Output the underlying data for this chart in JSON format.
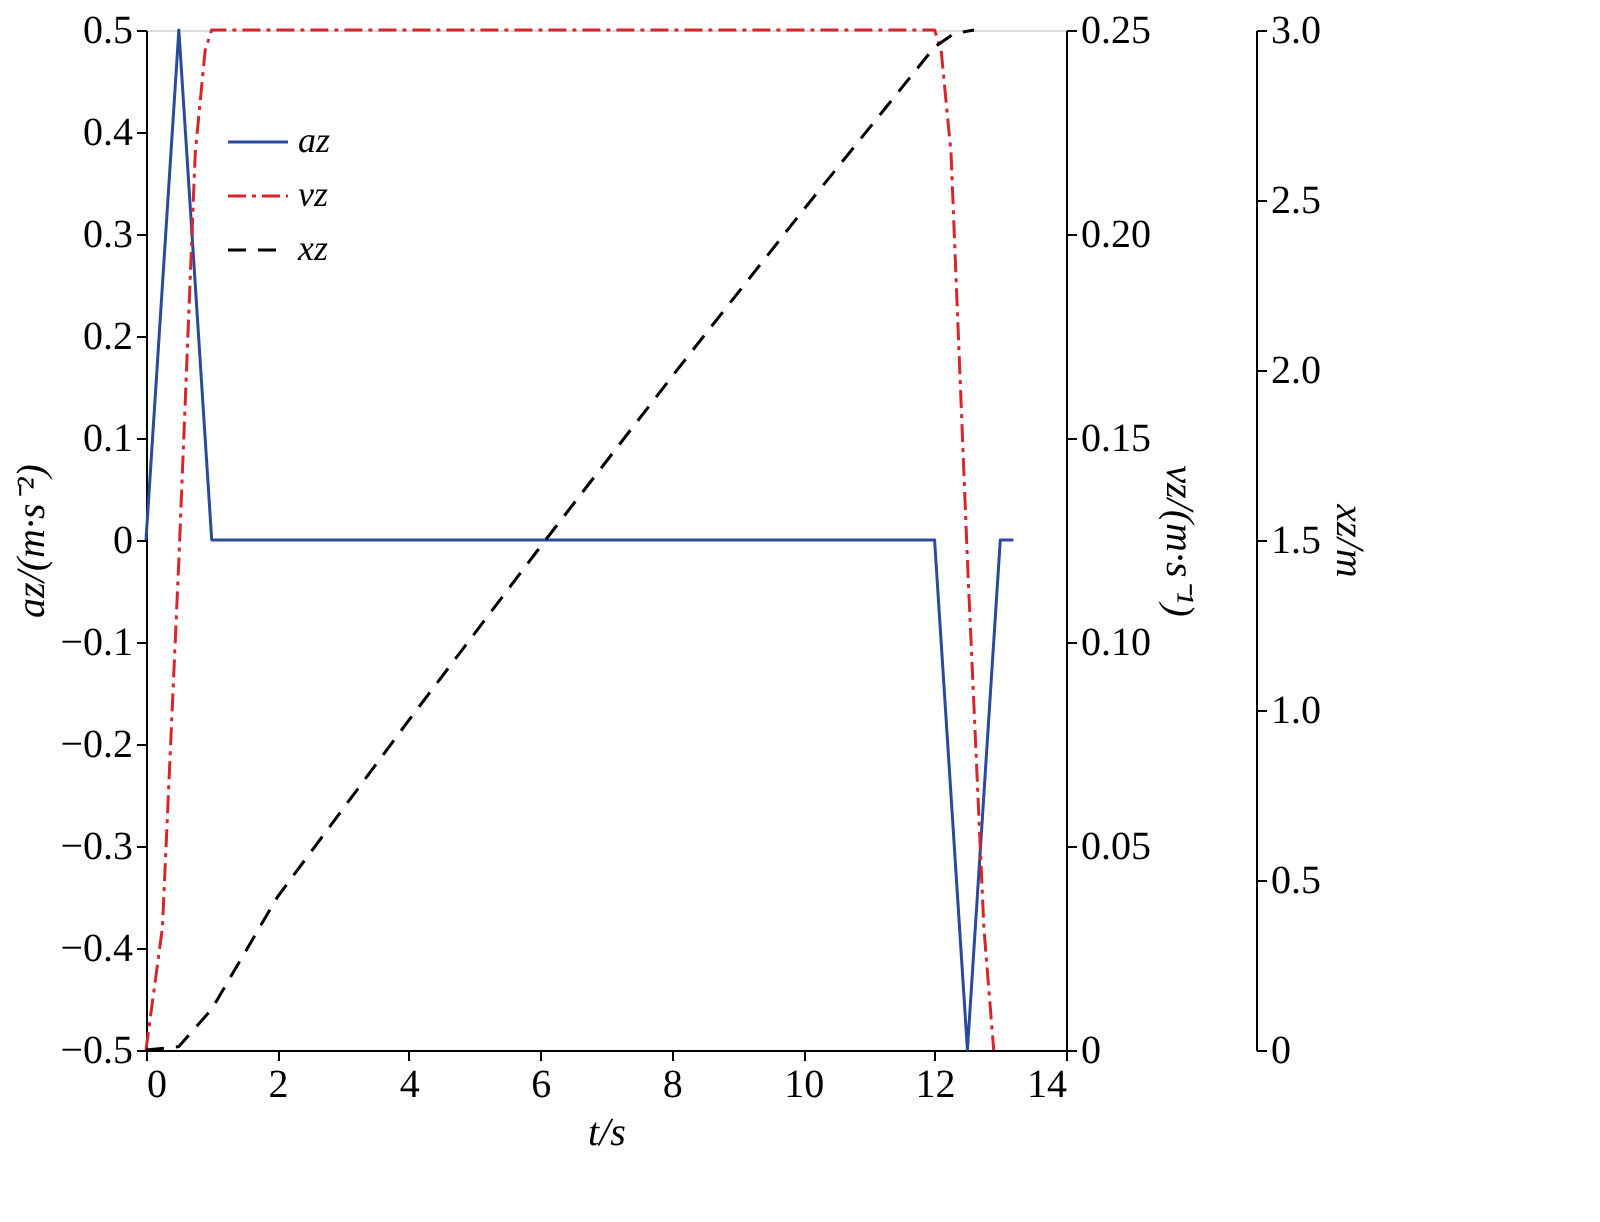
{
  "chart_data": {
    "type": "line",
    "xlabel": "t/s",
    "ylabel": "az/(m·s⁻²)",
    "y2label": "vz/(m·s⁻¹)",
    "y3label": "xz/m",
    "xlim": [
      0,
      14
    ],
    "xticks": [
      0,
      2,
      4,
      6,
      8,
      10,
      12,
      14
    ],
    "ylim": [
      -0.5,
      0.5
    ],
    "yticks": [
      -0.5,
      -0.4,
      -0.3,
      -0.2,
      -0.1,
      0,
      0.1,
      0.2,
      0.3,
      0.4,
      0.5
    ],
    "y2lim": [
      0,
      0.25
    ],
    "y2ticks": [
      0,
      0.05,
      {
        "value": 0.1,
        "label": "0.10"
      },
      0.15,
      {
        "value": 0.2,
        "label": "0.20"
      },
      0.25
    ],
    "y3lim": [
      0,
      3
    ],
    "y3ticks": [
      0,
      0.5,
      {
        "value": 1,
        "label": "1.0"
      },
      1.5,
      {
        "value": 2,
        "label": "2.0"
      },
      2.5,
      {
        "value": 3,
        "label": "3.0"
      }
    ],
    "grid": false,
    "legend": "top left",
    "series": [
      {
        "name": "az",
        "color": "#2b4a9c",
        "line_style": "solid",
        "x": [
          0,
          0.5,
          1,
          12,
          12.5,
          13,
          13.2
        ],
        "values": [
          0,
          0.5,
          0,
          0,
          -0.5,
          0,
          0
        ]
      },
      {
        "name": "vz",
        "color": "#d7262b",
        "line_style": "dashdot",
        "axis": "y2",
        "x": [
          0,
          0.25,
          0.5,
          0.75,
          0.9,
          1,
          12,
          12.1,
          12.25,
          12.5,
          12.75,
          12.9
        ],
        "values": [
          0,
          0.03,
          0.12,
          0.22,
          0.245,
          0.25,
          0.25,
          0.245,
          0.22,
          0.12,
          0.03,
          0
        ]
      },
      {
        "name": "xz",
        "color": "#000000",
        "line_style": "dashed",
        "axis": "y3",
        "x": [
          0,
          0.5,
          1,
          2,
          4,
          6,
          8,
          10,
          12,
          12.3,
          12.6
        ],
        "values": [
          0,
          0.01,
          0.12,
          0.45,
          0.97,
          1.48,
          1.98,
          2.47,
          2.95,
          2.99,
          3.0
        ]
      }
    ]
  }
}
